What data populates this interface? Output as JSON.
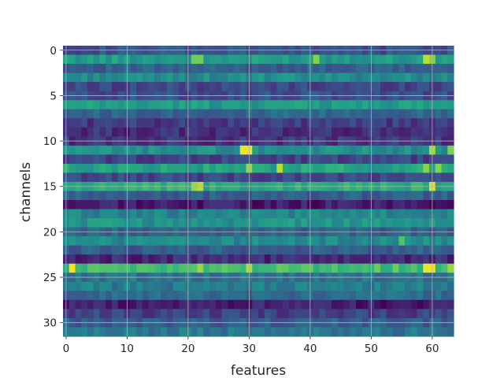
{
  "chart_data": {
    "type": "heatmap",
    "colormap": "viridis",
    "xlabel": "features",
    "ylabel": "channels",
    "x_range": [
      0,
      63
    ],
    "y_range": [
      0,
      31
    ],
    "x_ticks": [
      0,
      10,
      20,
      30,
      40,
      50,
      60
    ],
    "x_tick_labels": [
      "0",
      "10",
      "20",
      "30",
      "40",
      "50",
      "60"
    ],
    "y_ticks": [
      0,
      5,
      10,
      15,
      20,
      25,
      30
    ],
    "y_tick_labels": [
      "0",
      "5",
      "10",
      "15",
      "20",
      "25",
      "30"
    ],
    "y_inverted": true,
    "grid": true,
    "grid_color": "#b0b0b0",
    "value_scale": [
      0,
      1
    ],
    "row_base_values": [
      0.26,
      0.55,
      0.3,
      0.48,
      0.22,
      0.25,
      0.55,
      0.33,
      0.18,
      0.14,
      0.16,
      0.5,
      0.2,
      0.58,
      0.22,
      0.62,
      0.3,
      0.08,
      0.45,
      0.52,
      0.32,
      0.48,
      0.3,
      0.12,
      0.7,
      0.38,
      0.42,
      0.35,
      0.08,
      0.2,
      0.3,
      0.4
    ],
    "hotspots": [
      {
        "row": 1,
        "col": 21,
        "value": 0.78
      },
      {
        "row": 1,
        "col": 22,
        "value": 0.78
      },
      {
        "row": 1,
        "col": 41,
        "value": 0.82
      },
      {
        "row": 1,
        "col": 59,
        "value": 0.9
      },
      {
        "row": 1,
        "col": 60,
        "value": 0.82
      },
      {
        "row": 11,
        "col": 29,
        "value": 0.98
      },
      {
        "row": 11,
        "col": 30,
        "value": 0.98
      },
      {
        "row": 11,
        "col": 60,
        "value": 0.88
      },
      {
        "row": 11,
        "col": 63,
        "value": 0.8
      },
      {
        "row": 13,
        "col": 30,
        "value": 0.85
      },
      {
        "row": 13,
        "col": 35,
        "value": 0.9
      },
      {
        "row": 13,
        "col": 59,
        "value": 0.82
      },
      {
        "row": 13,
        "col": 61,
        "value": 0.82
      },
      {
        "row": 15,
        "col": 21,
        "value": 0.85
      },
      {
        "row": 15,
        "col": 22,
        "value": 0.9
      },
      {
        "row": 15,
        "col": 60,
        "value": 0.95
      },
      {
        "row": 24,
        "col": 1,
        "value": 0.98
      },
      {
        "row": 24,
        "col": 22,
        "value": 0.85
      },
      {
        "row": 24,
        "col": 30,
        "value": 0.88
      },
      {
        "row": 24,
        "col": 59,
        "value": 0.98
      },
      {
        "row": 24,
        "col": 60,
        "value": 0.98
      },
      {
        "row": 24,
        "col": 63,
        "value": 0.85
      },
      {
        "row": 21,
        "col": 55,
        "value": 0.72
      }
    ]
  }
}
